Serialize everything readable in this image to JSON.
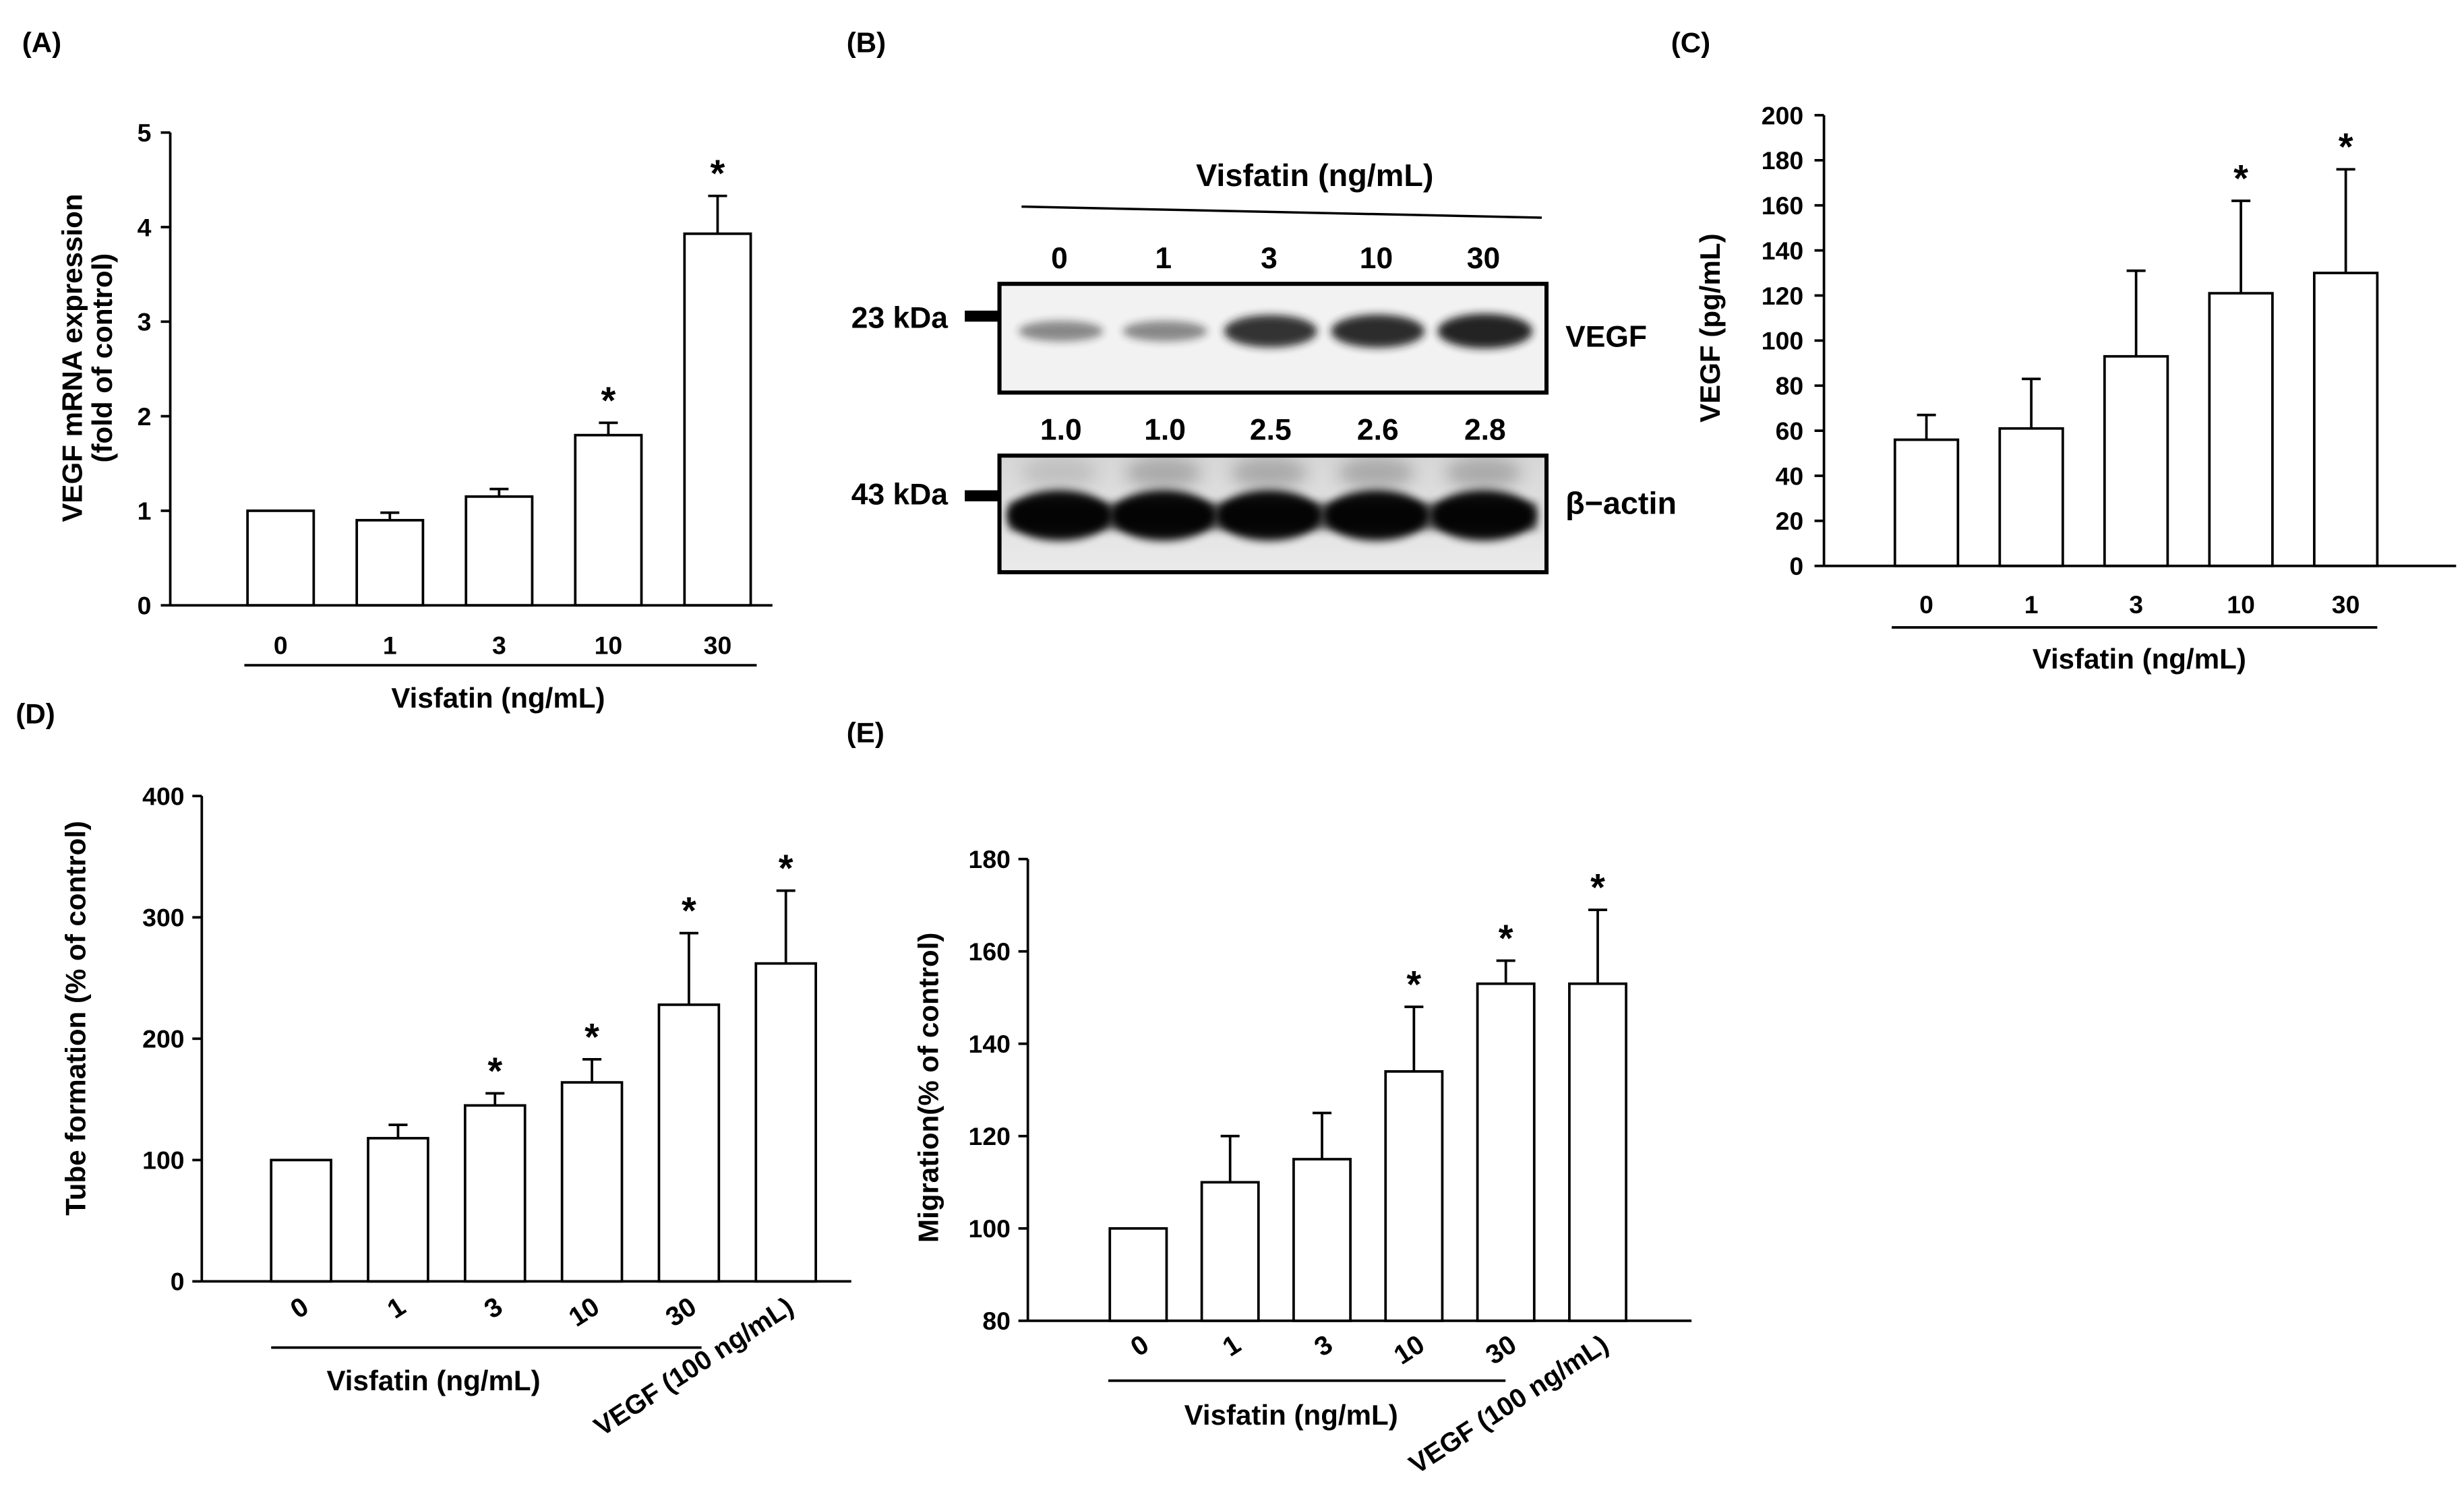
{
  "chart_data": [
    {
      "panel_label": "(A)",
      "type": "bar",
      "categories": [
        "0",
        "1",
        "3",
        "10",
        "30"
      ],
      "values": [
        1.0,
        0.9,
        1.15,
        1.8,
        3.93
      ],
      "errors": [
        0,
        0.08,
        0.08,
        0.13,
        0.4
      ],
      "significant": [
        false,
        false,
        false,
        true,
        true
      ],
      "significance_marker": "*",
      "xlabel": "Visfatin (ng/mL)",
      "xlabel_group_size": 5,
      "ylabel": [
        "VEGF mRNA expression",
        "(fold of control)"
      ],
      "ylim": [
        0,
        5
      ],
      "yticks": [
        0,
        1,
        2,
        3,
        4,
        5
      ],
      "grid": false
    },
    {
      "panel_label": "(C)",
      "type": "bar",
      "categories": [
        "0",
        "1",
        "3",
        "10",
        "30"
      ],
      "values": [
        56,
        61,
        93,
        121,
        130
      ],
      "errors": [
        11,
        22,
        38,
        41,
        46
      ],
      "significant": [
        false,
        false,
        false,
        true,
        true
      ],
      "significance_marker": "*",
      "xlabel": "Visfatin (ng/mL)",
      "xlabel_group_size": 5,
      "ylabel": [
        "VEGF (pg/mL)"
      ],
      "ylim": [
        0,
        200
      ],
      "yticks": [
        0,
        20,
        40,
        60,
        80,
        100,
        120,
        140,
        160,
        180,
        200
      ],
      "grid": false
    },
    {
      "panel_label": "(D)",
      "type": "bar",
      "categories": [
        "0",
        "1",
        "3",
        "10",
        "30",
        "VEGF (100 ng/mL)"
      ],
      "values": [
        100,
        118,
        145,
        164,
        228,
        262
      ],
      "errors": [
        0,
        11,
        10,
        19,
        59,
        60
      ],
      "significant": [
        false,
        false,
        true,
        true,
        true,
        true
      ],
      "significance_marker": "*",
      "xlabel": "Visfatin (ng/mL)",
      "xlabel_group_size": 5,
      "ylabel": [
        "Tube formation (% of control)"
      ],
      "ylim": [
        0,
        400
      ],
      "yticks": [
        0,
        100,
        200,
        300,
        400
      ],
      "grid": false
    },
    {
      "panel_label": "(E)",
      "type": "bar",
      "categories": [
        "0",
        "1",
        "3",
        "10",
        "30",
        "VEGF (100 ng/mL)"
      ],
      "values": [
        100,
        110,
        115,
        134,
        153,
        153
      ],
      "errors": [
        0,
        10,
        10,
        14,
        5,
        16
      ],
      "significant": [
        false,
        false,
        false,
        true,
        true,
        true
      ],
      "significance_marker": "*",
      "xlabel": "Visfatin (ng/mL)",
      "xlabel_group_size": 5,
      "ylabel": [
        "Migration(% of control)"
      ],
      "ylim": [
        80,
        180
      ],
      "yticks": [
        80,
        100,
        120,
        140,
        160,
        180
      ],
      "grid": false
    }
  ],
  "western_blot": {
    "panel_label": "(B)",
    "treatment_label": "Visfatin (ng/mL)",
    "lanes": [
      "0",
      "1",
      "3",
      "10",
      "30"
    ],
    "rows": [
      {
        "marker": "23 kDa",
        "protein": "VEGF"
      },
      {
        "marker": "43 kDa",
        "protein": "β−actin"
      }
    ],
    "relative_intensity_labels": [
      "1.0",
      "1.0",
      "2.5",
      "2.6",
      "2.8"
    ]
  }
}
